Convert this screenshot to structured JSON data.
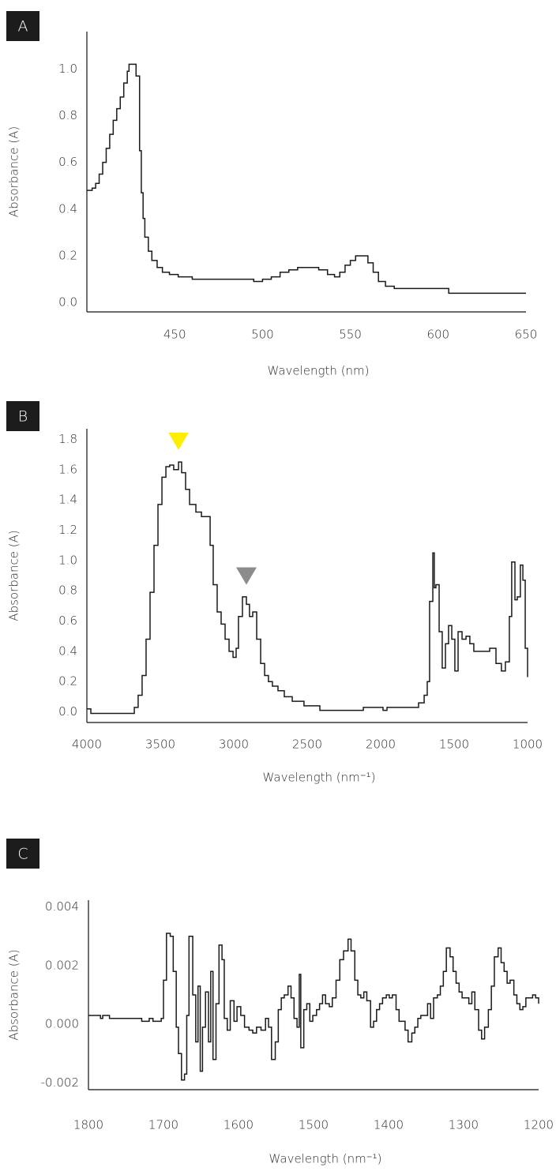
{
  "chart_data": [
    {
      "type": "line",
      "step": true,
      "panel": "A",
      "xlabel": "Wavelength (nm)",
      "ylabel": "Absorbance (A)",
      "xlim": [
        400,
        650
      ],
      "xticks": [
        450,
        500,
        550,
        600,
        650
      ],
      "ylim": [
        -0.04,
        1.16
      ],
      "yticks": [
        {
          "value": 0,
          "label": "0.0"
        },
        0.2,
        0.4,
        0.6,
        0.8,
        {
          "value": 1,
          "label": "1.0"
        }
      ],
      "grid": false,
      "series": [
        {
          "color": "#1a1a1a",
          "x": [
            400,
            403,
            405,
            407,
            409,
            411,
            413,
            415,
            417,
            419,
            421,
            423,
            424,
            427,
            428,
            430,
            431,
            432,
            433,
            435,
            437,
            440,
            443,
            447,
            452,
            460,
            480,
            495,
            500,
            505,
            510,
            515,
            520,
            527,
            532,
            537,
            541,
            544,
            547,
            550,
            553,
            557,
            560,
            563,
            566,
            570,
            575,
            590,
            605,
            606,
            650
          ],
          "values": [
            0.48,
            0.49,
            0.51,
            0.55,
            0.6,
            0.66,
            0.72,
            0.78,
            0.83,
            0.88,
            0.94,
            0.99,
            1.02,
            1.02,
            0.97,
            0.65,
            0.47,
            0.36,
            0.28,
            0.22,
            0.18,
            0.15,
            0.13,
            0.12,
            0.11,
            0.1,
            0.1,
            0.09,
            0.1,
            0.11,
            0.13,
            0.14,
            0.15,
            0.15,
            0.14,
            0.12,
            0.11,
            0.13,
            0.16,
            0.18,
            0.2,
            0.2,
            0.17,
            0.13,
            0.09,
            0.07,
            0.06,
            0.06,
            0.06,
            0.04,
            0.04
          ]
        }
      ]
    },
    {
      "type": "line",
      "step": true,
      "panel": "B",
      "xlabel": "Wavelength (nm⁻¹)",
      "ylabel": "Absorbance (A)",
      "xlim": [
        4000,
        1000
      ],
      "xticks": [
        4000,
        3500,
        3000,
        2500,
        2000,
        1500,
        1000
      ],
      "ylim": [
        -0.07,
        1.87
      ],
      "yticks": [
        {
          "value": 0,
          "label": "0.0"
        },
        0.2,
        0.4,
        0.6,
        0.8,
        {
          "value": 1,
          "label": "1.0"
        },
        1.2,
        1.4,
        1.6,
        1.8
      ],
      "grid": false,
      "markers": [
        {
          "x": 3376,
          "y": 1.73,
          "color": "#ffee00"
        },
        {
          "x": 2914,
          "y": 0.84,
          "color": "#8c8c8c"
        }
      ],
      "series": [
        {
          "color": "#1a1a1a",
          "x": [
            4000,
            3973,
            3704,
            3677,
            3651,
            3624,
            3597,
            3570,
            3543,
            3516,
            3489,
            3462,
            3436,
            3409,
            3376,
            3355,
            3328,
            3301,
            3258,
            3220,
            3183,
            3161,
            3140,
            3113,
            3086,
            3059,
            3032,
            3005,
            2984,
            2968,
            2941,
            2914,
            2893,
            2871,
            2844,
            2817,
            2790,
            2764,
            2737,
            2699,
            2656,
            2602,
            2522,
            2414,
            2145,
            2118,
            2011,
            1984,
            1957,
            1769,
            1742,
            1704,
            1683,
            1667,
            1645,
            1635,
            1624,
            1602,
            1581,
            1559,
            1538,
            1516,
            1495,
            1473,
            1446,
            1419,
            1393,
            1366,
            1312,
            1258,
            1215,
            1178,
            1151,
            1124,
            1108,
            1086,
            1070,
            1049,
            1032,
            1016,
            1000
          ],
          "values": [
            0.02,
            -0.01,
            -0.01,
            0.03,
            0.11,
            0.24,
            0.48,
            0.79,
            1.1,
            1.37,
            1.55,
            1.62,
            1.63,
            1.6,
            1.65,
            1.58,
            1.47,
            1.37,
            1.32,
            1.29,
            1.29,
            1.1,
            0.84,
            0.66,
            0.58,
            0.48,
            0.4,
            0.36,
            0.42,
            0.63,
            0.76,
            0.71,
            0.63,
            0.66,
            0.48,
            0.32,
            0.24,
            0.2,
            0.17,
            0.14,
            0.1,
            0.07,
            0.04,
            0.01,
            0.01,
            0.03,
            0.03,
            0.01,
            0.03,
            0.03,
            0.06,
            0.11,
            0.2,
            0.73,
            1.05,
            0.82,
            0.84,
            0.53,
            0.29,
            0.45,
            0.57,
            0.48,
            0.27,
            0.53,
            0.48,
            0.5,
            0.45,
            0.4,
            0.4,
            0.42,
            0.32,
            0.27,
            0.33,
            0.63,
            0.99,
            0.74,
            0.76,
            0.97,
            0.87,
            0.42,
            0.23
          ]
        }
      ]
    },
    {
      "type": "line",
      "step": true,
      "panel": "C",
      "xlabel": "Wavelength (nm⁻¹)",
      "ylabel": "Absorbance (A)",
      "xlim": [
        1800,
        1200
      ],
      "xticks": [
        1800,
        1700,
        1600,
        1500,
        1400,
        1300,
        1200
      ],
      "ylim": [
        -0.00223,
        0.00423
      ],
      "yticks": [
        -0.002,
        {
          "value": 0,
          "label": "0.000"
        },
        0.002,
        0.004
      ],
      "grid": false,
      "series": [
        {
          "color": "#1a1a1a",
          "x": [
            1800,
            1787,
            1784,
            1781,
            1772,
            1759,
            1735,
            1729,
            1719,
            1714,
            1703,
            1700,
            1696,
            1691,
            1687,
            1683,
            1680,
            1676,
            1672,
            1669,
            1666,
            1661,
            1657,
            1654,
            1651,
            1648,
            1644,
            1640,
            1637,
            1634,
            1630,
            1626,
            1622,
            1619,
            1615,
            1611,
            1606,
            1602,
            1597,
            1592,
            1586,
            1581,
            1576,
            1570,
            1564,
            1560,
            1556,
            1551,
            1547,
            1543,
            1539,
            1534,
            1530,
            1526,
            1522,
            1519,
            1517,
            1513,
            1509,
            1505,
            1501,
            1496,
            1492,
            1488,
            1484,
            1479,
            1475,
            1470,
            1465,
            1460,
            1454,
            1450,
            1445,
            1441,
            1437,
            1433,
            1429,
            1424,
            1420,
            1416,
            1412,
            1408,
            1403,
            1399,
            1395,
            1390,
            1386,
            1382,
            1378,
            1374,
            1369,
            1365,
            1361,
            1357,
            1352,
            1348,
            1344,
            1340,
            1335,
            1331,
            1327,
            1323,
            1318,
            1314,
            1310,
            1306,
            1302,
            1297,
            1293,
            1289,
            1285,
            1280,
            1276,
            1272,
            1267,
            1263,
            1259,
            1254,
            1250,
            1246,
            1242,
            1238,
            1233,
            1229,
            1225,
            1221,
            1217,
            1213,
            1208,
            1204,
            1200
          ],
          "values": [
            0.0003,
            0.0003,
            0.0002,
            0.0003,
            0.0002,
            0.0002,
            0.0002,
            0.0001,
            0.0002,
            0.0001,
            0.0002,
            0.0015,
            0.0031,
            0.003,
            0.0018,
            -0.0001,
            -0.001,
            -0.0019,
            -0.0017,
            0.0003,
            0.003,
            0.001,
            -0.0006,
            0.0013,
            -0.0016,
            -0.0001,
            0.0011,
            -0.0006,
            0.0018,
            -0.0012,
            0.0007,
            0.0027,
            0.0022,
            0.0002,
            -0.0002,
            0.0008,
            0.0001,
            0.0006,
            0.0003,
            -0.0001,
            -0.0002,
            -0.0003,
            -0.0001,
            -0.0002,
            0.0002,
            -0.0001,
            -0.0012,
            -0.0006,
            0.0005,
            0.0009,
            0.001,
            0.0013,
            0.0009,
            0.0002,
            -0.0001,
            0.0017,
            -0.0008,
            0.0005,
            0.0007,
            0.0001,
            0.0003,
            0.0005,
            0.0007,
            0.001,
            0.0007,
            0.0006,
            0.0009,
            0.0015,
            0.0022,
            0.0025,
            0.0029,
            0.0025,
            0.0015,
            0.001,
            0.0009,
            0.0011,
            0.0008,
            -0.0001,
            0.0001,
            0.0005,
            0.0007,
            0.0009,
            0.001,
            0.0009,
            0.001,
            0.0005,
            0.0001,
            0.0001,
            -0.0002,
            -0.0006,
            -0.0003,
            -0.0001,
            0.0002,
            0.0003,
            0.0003,
            0.0007,
            0.0002,
            0.0009,
            0.001,
            0.0013,
            0.0018,
            0.0026,
            0.0023,
            0.0018,
            0.0014,
            0.0011,
            0.0009,
            0.0009,
            0.0007,
            0.0011,
            0.0005,
            -0.0002,
            -0.0005,
            -0.0001,
            0.0005,
            0.0013,
            0.0023,
            0.0026,
            0.0021,
            0.0018,
            0.0014,
            0.0015,
            0.001,
            0.0007,
            0.0005,
            0.0006,
            0.0009,
            0.0009,
            0.001,
            0.0009,
            0.0007
          ]
        }
      ]
    }
  ]
}
